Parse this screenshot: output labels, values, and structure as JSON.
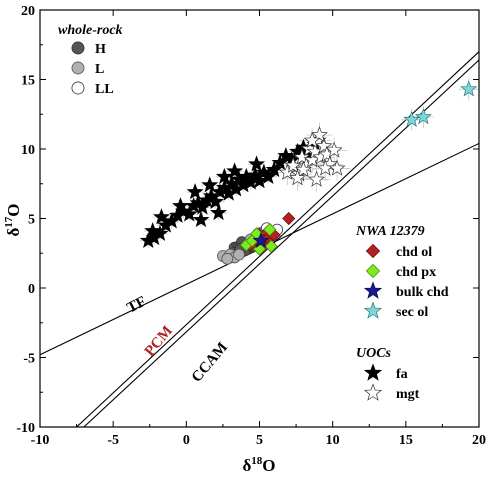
{
  "chart_data": {
    "type": "scatter",
    "xlabel_symbol": "δ",
    "xlabel_sup": "18",
    "xlabel_rest": "O",
    "ylabel_symbol": "δ",
    "ylabel_sup": "17",
    "ylabel_rest": "O",
    "xlim": [
      -10,
      20
    ],
    "ylim": [
      -10,
      20
    ],
    "xticks": [
      "-10",
      "-5",
      "0",
      "5",
      "10",
      "15",
      "20"
    ],
    "yticks": [
      "-10",
      "-5",
      "0",
      "5",
      "10",
      "15",
      "20"
    ],
    "grid": false,
    "reference_lines": [
      {
        "name": "TF",
        "points": [
          [
            -10,
            -4.8
          ],
          [
            20,
            10.4
          ]
        ],
        "label_color": "#000000"
      },
      {
        "name": "PCM",
        "points": [
          [
            -7.5,
            -10
          ],
          [
            20,
            17
          ]
        ],
        "label_color": "#b22222"
      },
      {
        "name": "CCAM",
        "points": [
          [
            -7.0,
            -10
          ],
          [
            20,
            16.4
          ]
        ],
        "label_color": "#000000"
      }
    ],
    "legends": [
      {
        "title": "whole-rock",
        "position": "top-left",
        "items": [
          {
            "label": "H",
            "marker": "circle",
            "fill": "#555555",
            "stroke": "#333333"
          },
          {
            "label": "L",
            "marker": "circle",
            "fill": "#b0b0b0",
            "stroke": "#555555"
          },
          {
            "label": "LL",
            "marker": "circle",
            "fill": "#ffffff",
            "stroke": "#333333"
          }
        ]
      },
      {
        "title": "NWA 12379",
        "position": "right",
        "items": [
          {
            "label": "chd ol",
            "marker": "diamond",
            "fill": "#b22222",
            "stroke": "#6b0e0e"
          },
          {
            "label": "chd px",
            "marker": "diamond",
            "fill": "#7fe81f",
            "stroke": "#3f8f10"
          },
          {
            "label": "bulk chd",
            "marker": "star",
            "fill": "#1a1a8c",
            "stroke": "#0a0a50"
          },
          {
            "label": "sec ol",
            "marker": "star",
            "fill": "#7fd6d6",
            "stroke": "#2a7a7a"
          }
        ]
      },
      {
        "title": "UOCs",
        "position": "bottom-right",
        "items": [
          {
            "label": "fa",
            "marker": "star",
            "fill": "#000000",
            "stroke": "#000000"
          },
          {
            "label": "mgt",
            "marker": "star",
            "fill": "#ffffff",
            "stroke": "#333333"
          }
        ]
      }
    ],
    "series": [
      {
        "name": "H",
        "marker": "circle",
        "fill": "#555555",
        "stroke": "#333333",
        "points": [
          [
            3.3,
            2.9
          ],
          [
            3.6,
            3.0
          ],
          [
            3.9,
            2.8
          ],
          [
            4.1,
            3.1
          ],
          [
            3.5,
            2.6
          ],
          [
            4.3,
            2.9
          ],
          [
            3.8,
            3.3
          ],
          [
            4.0,
            2.7
          ],
          [
            3.2,
            2.5
          ],
          [
            4.5,
            3.0
          ],
          [
            3.7,
            2.8
          ]
        ]
      },
      {
        "name": "L",
        "marker": "circle",
        "fill": "#b0b0b0",
        "stroke": "#555555",
        "points": [
          [
            2.5,
            2.3
          ],
          [
            3.0,
            2.4
          ],
          [
            3.3,
            2.2
          ],
          [
            4.6,
            3.3
          ],
          [
            4.8,
            3.6
          ],
          [
            4.4,
            3.5
          ],
          [
            5.0,
            3.5
          ],
          [
            4.7,
            3.2
          ],
          [
            2.8,
            2.1
          ],
          [
            3.6,
            2.4
          ]
        ]
      },
      {
        "name": "LL",
        "marker": "circle",
        "fill": "#ffffff",
        "stroke": "#333333",
        "points": [
          [
            5.3,
            3.6
          ],
          [
            5.6,
            3.9
          ],
          [
            5.2,
            4.0
          ],
          [
            5.9,
            3.8
          ],
          [
            6.2,
            4.2
          ],
          [
            5.5,
            4.3
          ],
          [
            4.9,
            3.9
          ]
        ]
      },
      {
        "name": "fa",
        "marker": "star",
        "fill": "#000000",
        "stroke": "#000000",
        "error": [
          0.6,
          0.5
        ],
        "points": [
          [
            -2.6,
            3.4
          ],
          [
            -2.3,
            4.1
          ],
          [
            -1.8,
            3.9
          ],
          [
            -1.4,
            4.5
          ],
          [
            -1.0,
            4.8
          ],
          [
            -0.6,
            5.2
          ],
          [
            -0.2,
            5.5
          ],
          [
            0.2,
            5.3
          ],
          [
            0.5,
            5.9
          ],
          [
            0.8,
            6.1
          ],
          [
            1.1,
            5.8
          ],
          [
            1.4,
            6.3
          ],
          [
            1.7,
            6.6
          ],
          [
            2.0,
            6.2
          ],
          [
            2.3,
            6.9
          ],
          [
            2.6,
            7.2
          ],
          [
            2.9,
            6.8
          ],
          [
            3.1,
            7.5
          ],
          [
            3.4,
            7.1
          ],
          [
            3.6,
            7.8
          ],
          [
            3.9,
            7.4
          ],
          [
            4.1,
            8.0
          ],
          [
            4.4,
            7.6
          ],
          [
            4.7,
            8.1
          ],
          [
            5.0,
            7.7
          ],
          [
            5.3,
            8.3
          ],
          [
            5.6,
            8.0
          ],
          [
            6.0,
            8.5
          ],
          [
            6.4,
            9.0
          ],
          [
            6.8,
            9.5
          ],
          [
            7.2,
            9.2
          ],
          [
            7.6,
            9.8
          ],
          [
            8.0,
            10.1
          ],
          [
            8.4,
            9.6
          ],
          [
            8.8,
            10.3
          ],
          [
            -1.7,
            5.1
          ],
          [
            -0.4,
            5.9
          ],
          [
            0.6,
            6.9
          ],
          [
            1.6,
            7.4
          ],
          [
            2.6,
            8.0
          ],
          [
            3.3,
            8.4
          ],
          [
            4.8,
            8.9
          ],
          [
            -2.2,
            3.6
          ],
          [
            1.0,
            4.9
          ],
          [
            2.2,
            5.4
          ]
        ]
      },
      {
        "name": "mgt",
        "marker": "star",
        "fill": "#ffffff",
        "stroke": "#333333",
        "error": [
          0.9,
          0.9
        ],
        "points": [
          [
            6.9,
            8.3
          ],
          [
            7.3,
            8.8
          ],
          [
            7.7,
            8.2
          ],
          [
            7.9,
            9.4
          ],
          [
            8.2,
            8.8
          ],
          [
            8.4,
            10.0
          ],
          [
            8.6,
            9.2
          ],
          [
            8.8,
            9.8
          ],
          [
            9.0,
            10.6
          ],
          [
            9.2,
            9.4
          ],
          [
            9.4,
            10.2
          ],
          [
            9.6,
            9.6
          ],
          [
            9.8,
            8.9
          ],
          [
            10.1,
            9.9
          ],
          [
            9.1,
            11.0
          ],
          [
            8.6,
            10.6
          ],
          [
            8.0,
            8.5
          ],
          [
            7.6,
            7.9
          ],
          [
            9.5,
            8.6
          ],
          [
            10.3,
            8.6
          ],
          [
            8.9,
            7.8
          ]
        ]
      },
      {
        "name": "chd ol",
        "marker": "diamond",
        "fill": "#b22222",
        "stroke": "#6b0e0e",
        "points": [
          [
            4.7,
            3.6
          ],
          [
            5.0,
            3.8
          ],
          [
            5.2,
            3.5
          ],
          [
            5.5,
            4.0
          ],
          [
            4.9,
            3.3
          ],
          [
            5.6,
            3.6
          ],
          [
            4.4,
            3.1
          ],
          [
            5.3,
            3.0
          ],
          [
            6.0,
            3.8
          ],
          [
            7.0,
            5.0
          ]
        ]
      },
      {
        "name": "chd px",
        "marker": "diamond",
        "fill": "#7fe81f",
        "stroke": "#3f8f10",
        "points": [
          [
            4.1,
            3.1
          ],
          [
            4.5,
            3.4
          ],
          [
            5.7,
            4.2
          ],
          [
            5.8,
            3.0
          ],
          [
            5.0,
            2.8
          ],
          [
            4.8,
            3.9
          ]
        ]
      },
      {
        "name": "bulk chd",
        "marker": "star",
        "fill": "#1a1a8c",
        "stroke": "#0a0a50",
        "points": [
          [
            5.1,
            3.4
          ]
        ]
      },
      {
        "name": "sec ol",
        "marker": "star",
        "fill": "#7fd6d6",
        "stroke": "#2a7a7a",
        "error": [
          0.7,
          0.8
        ],
        "points": [
          [
            15.4,
            12.1
          ],
          [
            16.2,
            12.3
          ],
          [
            19.3,
            14.3
          ]
        ]
      }
    ]
  }
}
